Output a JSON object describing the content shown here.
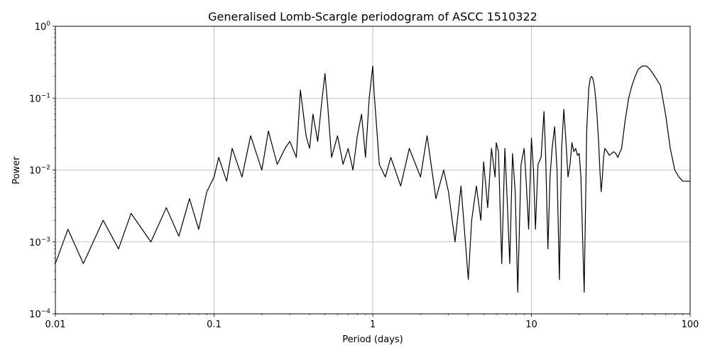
{
  "chart_data": {
    "type": "line",
    "title": "Generalised Lomb-Scargle periodogram of ASCC 1510322",
    "xlabel": "Period (days)",
    "ylabel": "Power",
    "xscale": "log",
    "yscale": "log",
    "xlim": [
      0.01,
      100
    ],
    "ylim": [
      0.0001,
      1
    ],
    "grid": true,
    "x_ticks": [
      {
        "value": 0.01,
        "label": "0.01"
      },
      {
        "value": 0.1,
        "label": "0.1"
      },
      {
        "value": 1,
        "label": "1"
      },
      {
        "value": 10,
        "label": "10"
      },
      {
        "value": 100,
        "label": "100"
      }
    ],
    "y_ticks": [
      {
        "value": 0.0001,
        "base": "10",
        "exp": "−4"
      },
      {
        "value": 0.001,
        "base": "10",
        "exp": "−3"
      },
      {
        "value": 0.01,
        "base": "10",
        "exp": "−2"
      },
      {
        "value": 0.1,
        "base": "10",
        "exp": "−1"
      },
      {
        "value": 1,
        "base": "10",
        "exp": "0"
      }
    ],
    "line_color": "#000000",
    "grid_color": "#b0b0b0",
    "series": [
      {
        "x": [
          0.01,
          0.012,
          0.015,
          0.02,
          0.025,
          0.03,
          0.04,
          0.05,
          0.06,
          0.07,
          0.08,
          0.09,
          0.1,
          0.107,
          0.12,
          0.13,
          0.15,
          0.17,
          0.2,
          0.22,
          0.25,
          0.28,
          0.3,
          0.33,
          0.35,
          0.38,
          0.4,
          0.42,
          0.45,
          0.48,
          0.5,
          0.52,
          0.55,
          0.6,
          0.65,
          0.7,
          0.75,
          0.8,
          0.85,
          0.9,
          0.95,
          1.0,
          1.02,
          1.05,
          1.1,
          1.2,
          1.3,
          1.5,
          1.7,
          2.0,
          2.2,
          2.5,
          2.8,
          3.0,
          3.3,
          3.6,
          4.0,
          4.2,
          4.5,
          4.8,
          5.0,
          5.3,
          5.6,
          5.9,
          6.0,
          6.2,
          6.5,
          6.8,
          7.0,
          7.3,
          7.6,
          7.9,
          8.2,
          8.6,
          9.0,
          9.3,
          9.6,
          10.0,
          10.3,
          10.6,
          11.0,
          11.5,
          12.0,
          12.3,
          12.7,
          13.1,
          13.5,
          14.0,
          14.5,
          15.0,
          15.5,
          16.0,
          16.5,
          17.0,
          17.5,
          18.0,
          18.5,
          19.0,
          19.5,
          20.0,
          20.5,
          21.0,
          21.5,
          22.0,
          22.3,
          22.7,
          23.0,
          23.5,
          24.0,
          24.5,
          25.0,
          25.5,
          26.0,
          26.5,
          27.0,
          27.5,
          28.0,
          28.5,
          29.0,
          29.5,
          30.0,
          31.0,
          32.0,
          33.0,
          34.0,
          35.0,
          37.0,
          39.0,
          41.0,
          43.0,
          45.0,
          47.0,
          50.0,
          53.0,
          56.0,
          60.0,
          65.0,
          70.0,
          75.0,
          80.0,
          85.0,
          90.0,
          95.0,
          100.0
        ],
        "y": [
          0.0005,
          0.0015,
          0.0005,
          0.002,
          0.0008,
          0.0025,
          0.001,
          0.003,
          0.0012,
          0.004,
          0.0015,
          0.005,
          0.008,
          0.015,
          0.007,
          0.02,
          0.008,
          0.03,
          0.01,
          0.035,
          0.012,
          0.02,
          0.025,
          0.015,
          0.13,
          0.03,
          0.02,
          0.06,
          0.025,
          0.1,
          0.22,
          0.08,
          0.015,
          0.03,
          0.012,
          0.02,
          0.01,
          0.03,
          0.06,
          0.015,
          0.1,
          0.28,
          0.12,
          0.05,
          0.012,
          0.008,
          0.015,
          0.006,
          0.02,
          0.008,
          0.03,
          0.004,
          0.01,
          0.005,
          0.001,
          0.006,
          0.0003,
          0.002,
          0.006,
          0.002,
          0.013,
          0.003,
          0.02,
          0.008,
          0.024,
          0.018,
          0.0005,
          0.02,
          0.005,
          0.0005,
          0.017,
          0.005,
          0.0002,
          0.012,
          0.02,
          0.006,
          0.0015,
          0.028,
          0.01,
          0.0015,
          0.012,
          0.015,
          0.065,
          0.015,
          0.0008,
          0.008,
          0.02,
          0.04,
          0.01,
          0.0003,
          0.02,
          0.07,
          0.025,
          0.008,
          0.012,
          0.024,
          0.018,
          0.02,
          0.016,
          0.017,
          0.008,
          0.0012,
          0.0002,
          0.005,
          0.035,
          0.08,
          0.14,
          0.19,
          0.2,
          0.18,
          0.14,
          0.09,
          0.05,
          0.025,
          0.01,
          0.005,
          0.008,
          0.015,
          0.02,
          0.019,
          0.018,
          0.016,
          0.017,
          0.018,
          0.017,
          0.015,
          0.02,
          0.05,
          0.1,
          0.15,
          0.2,
          0.25,
          0.28,
          0.28,
          0.25,
          0.2,
          0.15,
          0.06,
          0.02,
          0.01,
          0.008,
          0.007,
          0.007,
          0.007
        ]
      }
    ]
  }
}
